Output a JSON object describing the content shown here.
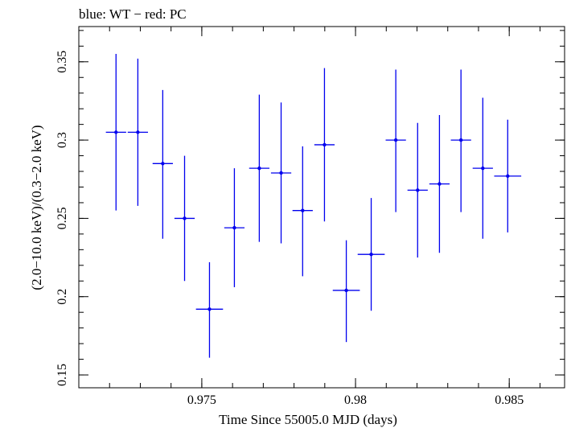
{
  "chart_data": {
    "type": "scatter",
    "title": "blue: WT − red: PC",
    "xlabel": "Time Since 55005.0 MJD (days)",
    "ylabel": "(2.0−10.0 keV)/(0.3−2.0 keV)",
    "xlim": [
      0.971,
      0.9868
    ],
    "ylim": [
      0.1418,
      0.3725
    ],
    "x_ticks": [
      {
        "value": 0.975,
        "label": "0.975"
      },
      {
        "value": 0.98,
        "label": "0.98"
      },
      {
        "value": 0.985,
        "label": "0.985"
      }
    ],
    "y_ticks": [
      {
        "value": 0.15,
        "label": "0.15"
      },
      {
        "value": 0.2,
        "label": "0.2"
      },
      {
        "value": 0.25,
        "label": "0.25"
      },
      {
        "value": 0.3,
        "label": "0.3"
      },
      {
        "value": 0.35,
        "label": "0.35"
      }
    ],
    "x_minor_step": 0.001,
    "y_minor_step": 0.01,
    "grid": false,
    "colors": {
      "series": "#0000ee",
      "axes": "#000000"
    },
    "series": [
      {
        "name": "WT",
        "color": "#0000ee",
        "points": [
          {
            "x": 0.97221,
            "xerr": 0.00033,
            "y": 0.305,
            "ylo": 0.255,
            "yhi": 0.355
          },
          {
            "x": 0.97292,
            "xerr": 0.00033,
            "y": 0.305,
            "ylo": 0.258,
            "yhi": 0.352
          },
          {
            "x": 0.97373,
            "xerr": 0.00033,
            "y": 0.285,
            "ylo": 0.237,
            "yhi": 0.332
          },
          {
            "x": 0.97444,
            "xerr": 0.00033,
            "y": 0.25,
            "ylo": 0.21,
            "yhi": 0.29
          },
          {
            "x": 0.97525,
            "xerr": 0.00044,
            "y": 0.192,
            "ylo": 0.161,
            "yhi": 0.222
          },
          {
            "x": 0.97606,
            "xerr": 0.00033,
            "y": 0.244,
            "ylo": 0.206,
            "yhi": 0.282
          },
          {
            "x": 0.97687,
            "xerr": 0.00033,
            "y": 0.282,
            "ylo": 0.235,
            "yhi": 0.329
          },
          {
            "x": 0.97758,
            "xerr": 0.00033,
            "y": 0.279,
            "ylo": 0.234,
            "yhi": 0.324
          },
          {
            "x": 0.97828,
            "xerr": 0.00033,
            "y": 0.255,
            "ylo": 0.213,
            "yhi": 0.296
          },
          {
            "x": 0.97899,
            "xerr": 0.00033,
            "y": 0.297,
            "ylo": 0.248,
            "yhi": 0.346
          },
          {
            "x": 0.9797,
            "xerr": 0.00044,
            "y": 0.204,
            "ylo": 0.171,
            "yhi": 0.236
          },
          {
            "x": 0.98051,
            "xerr": 0.00044,
            "y": 0.227,
            "ylo": 0.191,
            "yhi": 0.263
          },
          {
            "x": 0.98131,
            "xerr": 0.00033,
            "y": 0.3,
            "ylo": 0.254,
            "yhi": 0.345
          },
          {
            "x": 0.98202,
            "xerr": 0.00033,
            "y": 0.268,
            "ylo": 0.225,
            "yhi": 0.311
          },
          {
            "x": 0.98273,
            "xerr": 0.00033,
            "y": 0.272,
            "ylo": 0.228,
            "yhi": 0.316
          },
          {
            "x": 0.98343,
            "xerr": 0.00033,
            "y": 0.3,
            "ylo": 0.254,
            "yhi": 0.345
          },
          {
            "x": 0.98414,
            "xerr": 0.00033,
            "y": 0.282,
            "ylo": 0.237,
            "yhi": 0.327
          },
          {
            "x": 0.98495,
            "xerr": 0.00044,
            "y": 0.277,
            "ylo": 0.241,
            "yhi": 0.313
          }
        ]
      }
    ]
  }
}
